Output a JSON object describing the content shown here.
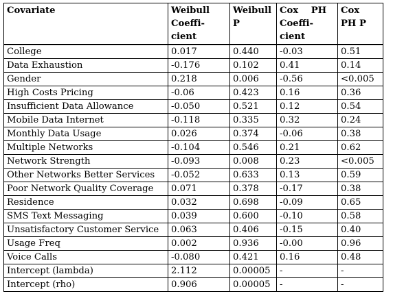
{
  "table": {
    "headers": {
      "covariate": "Covariate",
      "weibull_coef": [
        "Weibull",
        "Coeffi-",
        "cient"
      ],
      "weibull_p": "Weibull P",
      "cox_coef": [
        "Cox PH",
        "Coeffi-",
        "cient"
      ],
      "cox_p": [
        "Cox",
        "PH P"
      ]
    },
    "rows": [
      [
        "College",
        "0.017",
        "0.440",
        "-0.03",
        "0.51"
      ],
      [
        "Data Exhaustion",
        "-0.176",
        "0.102",
        "0.41",
        "0.14"
      ],
      [
        "Gender",
        "0.218",
        "0.006",
        "-0.56",
        "<0.005"
      ],
      [
        "High Costs Pricing",
        "-0.06",
        "0.423",
        "0.16",
        "0.36"
      ],
      [
        "Insufficient Data Allowance",
        "-0.050",
        "0.521",
        "0.12",
        "0.54"
      ],
      [
        "Mobile Data Internet",
        "-0.118",
        "0.335",
        "0.32",
        "0.24"
      ],
      [
        "Monthly Data Usage",
        "0.026",
        "0.374",
        "-0.06",
        "0.38"
      ],
      [
        "Multiple Networks",
        "-0.104",
        "0.546",
        "0.21",
        "0.62"
      ],
      [
        "Network Strength",
        "-0.093",
        "0.008",
        "0.23",
        "<0.005"
      ],
      [
        "Other Networks Better Services",
        "-0.052",
        "0.633",
        "0.13",
        "0.59"
      ],
      [
        "Poor Network Quality Coverage",
        "0.071",
        "0.378",
        "-0.17",
        "0.38"
      ],
      [
        "Residence",
        "0.032",
        "0.698",
        "-0.09",
        "0.65"
      ],
      [
        "SMS Text Messaging",
        "0.039",
        "0.600",
        "-0.10",
        "0.58"
      ],
      [
        "Unsatisfactory Customer Service",
        "0.063",
        "0.406",
        "-0.15",
        "0.40"
      ],
      [
        "Usage Freq",
        "0.002",
        "0.936",
        "-0.00",
        "0.96"
      ],
      [
        "Voice Calls",
        "-0.080",
        "0.421",
        "0.16",
        "0.48"
      ],
      [
        "Intercept (lambda)",
        "2.112",
        "0.00005",
        "-",
        "-"
      ],
      [
        "Intercept (rho)",
        "0.906",
        "0.00005",
        "-",
        "-"
      ]
    ]
  }
}
